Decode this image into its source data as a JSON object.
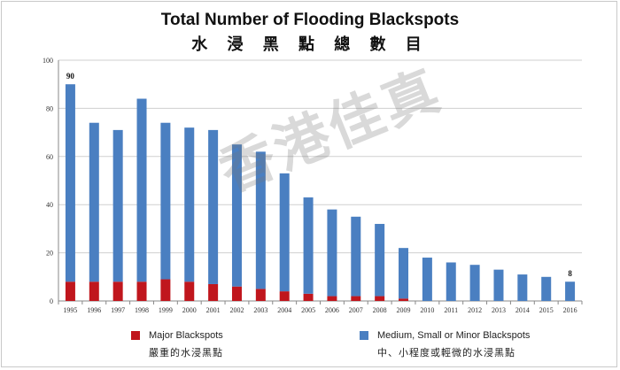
{
  "chart_data": {
    "type": "bar",
    "stacked": true,
    "title": "Total Number of Flooding Blackspots",
    "subtitle": "水 浸 黑 點 總 數 目",
    "categories": [
      "1995",
      "1996",
      "1997",
      "1998",
      "1999",
      "2000",
      "2001",
      "2002",
      "2003",
      "2004",
      "2005",
      "2006",
      "2007",
      "2008",
      "2009",
      "2010",
      "2011",
      "2012",
      "2013",
      "2014",
      "2015",
      "2016"
    ],
    "series": [
      {
        "name": "Major Blackspots",
        "name_zh": "嚴重的水浸黑點",
        "color": "#c0161d",
        "values": [
          8,
          8,
          8,
          8,
          9,
          8,
          7,
          6,
          5,
          4,
          3,
          2,
          2,
          2,
          1,
          0,
          0,
          0,
          0,
          0,
          0,
          0
        ]
      },
      {
        "name": "Medium, Small or Minor Blackspots",
        "name_zh": "中、小程度或輕微的水浸黑點",
        "color": "#4a7fc1",
        "values": [
          82,
          66,
          63,
          76,
          65,
          64,
          64,
          59,
          57,
          49,
          40,
          36,
          33,
          30,
          21,
          18,
          16,
          15,
          13,
          11,
          10,
          8
        ]
      }
    ],
    "yticks": [
      0,
      20,
      40,
      60,
      80,
      100
    ],
    "ylim": [
      0,
      100
    ],
    "grid": true,
    "legend": "bottom",
    "annotations": [
      {
        "category": "1995",
        "text": "90"
      },
      {
        "category": "2016",
        "text": "8"
      }
    ]
  },
  "watermark": "香港佳真"
}
